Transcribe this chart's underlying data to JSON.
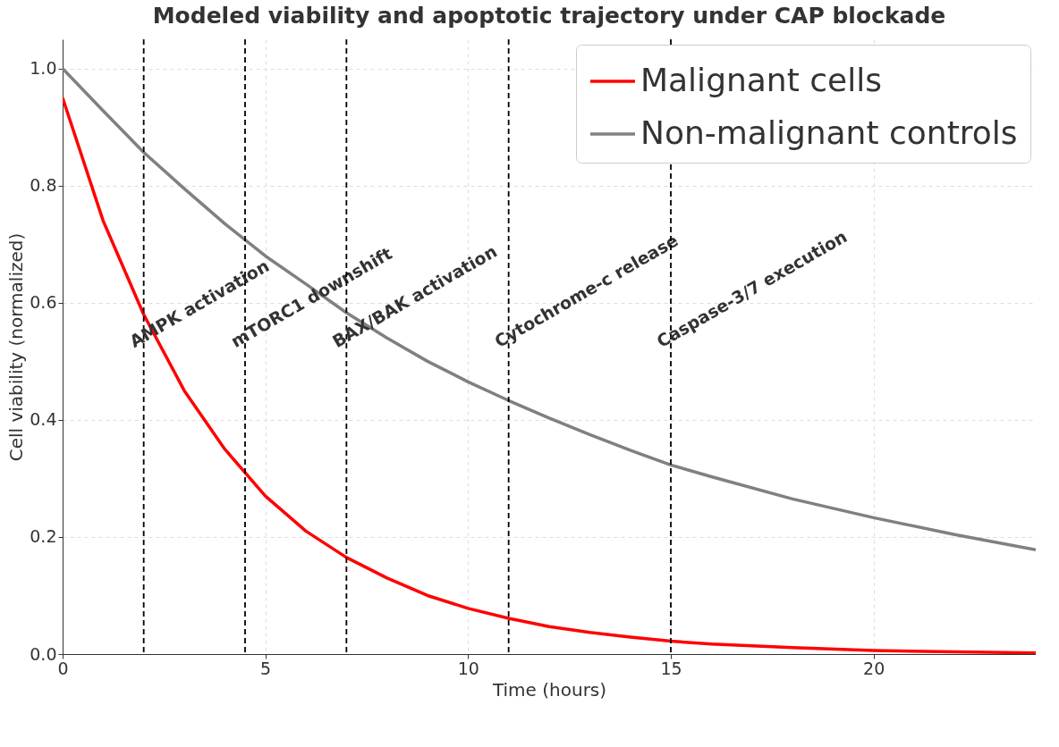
{
  "chart_data": {
    "type": "line",
    "title": "Modeled viability and apoptotic trajectory under CAP blockade",
    "xlabel": "Time (hours)",
    "ylabel": "Cell viability (normalized)",
    "x": [
      0,
      1,
      2,
      3,
      4,
      5,
      6,
      7,
      8,
      9,
      10,
      11,
      12,
      13,
      14,
      15,
      16,
      18,
      20,
      22,
      24
    ],
    "series": [
      {
        "name": "Malignant cells",
        "color": "#ff0000",
        "values": [
          0.95,
          0.74,
          0.58,
          0.45,
          0.35,
          0.27,
          0.21,
          0.165,
          0.13,
          0.1,
          0.078,
          0.061,
          0.047,
          0.037,
          0.029,
          0.022,
          0.017,
          0.011,
          0.006,
          0.004,
          0.002
        ]
      },
      {
        "name": "Non-malignant controls",
        "color": "#808080",
        "values": [
          1.0,
          0.928,
          0.857,
          0.795,
          0.735,
          0.68,
          0.632,
          0.583,
          0.54,
          0.5,
          0.465,
          0.433,
          0.403,
          0.375,
          0.348,
          0.323,
          0.303,
          0.265,
          0.233,
          0.204,
          0.178
        ]
      }
    ],
    "xlim": [
      0,
      24
    ],
    "xticks": [
      0,
      5,
      10,
      15,
      20
    ],
    "ylim": [
      0,
      1.05
    ],
    "yticks": [
      {
        "value": 0,
        "label": "0.0"
      },
      0.2,
      0.4,
      0.6,
      0.8,
      {
        "value": 1,
        "label": "1.0"
      }
    ],
    "ref_lines": [
      {
        "axis": "x",
        "value": 2,
        "label": "AMPK activation",
        "color": "#000000",
        "line_style": "dashed"
      },
      {
        "axis": "x",
        "value": 4.5,
        "label": "mTORC1 downshift",
        "color": "#000000",
        "line_style": "dashed"
      },
      {
        "axis": "x",
        "value": 7,
        "label": "BAX/BAK activation",
        "color": "#000000",
        "line_style": "dashed"
      },
      {
        "axis": "x",
        "value": 11,
        "label": "Cytochrome-c release",
        "color": "#000000",
        "line_style": "dashed"
      },
      {
        "axis": "x",
        "value": 15,
        "label": "Caspase-3/7 execution",
        "color": "#000000",
        "line_style": "dashed"
      }
    ],
    "grid": true,
    "legend": "top right",
    "marker": "none",
    "line_style": "solid"
  }
}
